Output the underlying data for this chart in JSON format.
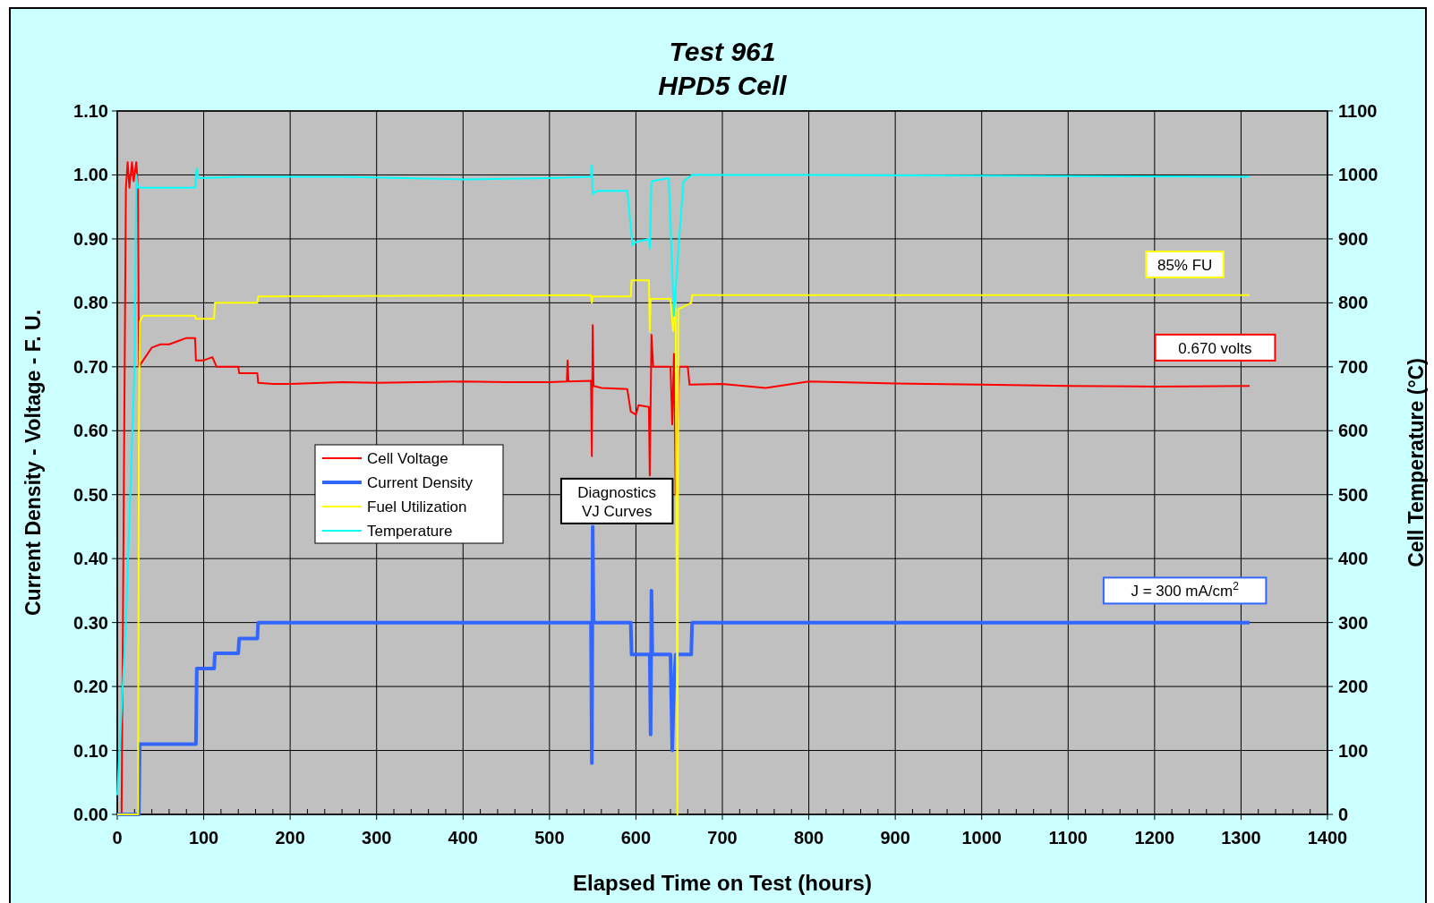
{
  "chart_data": {
    "type": "line",
    "title": "Test  961\nHPD5 Cell",
    "xlabel": "Elapsed  Time  on  Test  (hours)",
    "ylabel": "Current  Density  -  Voltage  -  F. U.",
    "y2label": "Cell  Temperature  (°C)",
    "xlim": [
      0,
      1400
    ],
    "xticks": [
      0,
      100,
      200,
      300,
      400,
      500,
      600,
      700,
      800,
      900,
      1000,
      1100,
      1200,
      1300,
      1400
    ],
    "ylim": [
      0,
      1.1
    ],
    "yticks": [
      {
        "value": 0,
        "label": "0.00"
      },
      {
        "value": 0.1,
        "label": "0.10"
      },
      {
        "value": 0.2,
        "label": "0.20"
      },
      {
        "value": 0.3,
        "label": "0.30"
      },
      {
        "value": 0.4,
        "label": "0.40"
      },
      {
        "value": 0.5,
        "label": "0.50"
      },
      {
        "value": 0.6,
        "label": "0.60"
      },
      {
        "value": 0.7,
        "label": "0.70"
      },
      {
        "value": 0.8,
        "label": "0.80"
      },
      {
        "value": 0.9,
        "label": "0.90"
      },
      {
        "value": 1,
        "label": "1.00"
      },
      {
        "value": 1.1,
        "label": "1.10"
      }
    ],
    "y2lim": [
      0,
      1100
    ],
    "y2ticks": [
      0,
      100,
      200,
      300,
      400,
      500,
      600,
      700,
      800,
      900,
      1000,
      1100
    ],
    "grid": true,
    "legend": "left",
    "line_style": "solid",
    "marker": "none",
    "series": [
      {
        "name": "Cell  Voltage",
        "color": "#ff0000",
        "x": [
          0,
          5,
          10,
          12,
          14,
          17,
          19,
          22,
          24,
          25,
          30,
          40,
          50,
          60,
          70,
          80,
          90,
          91,
          100,
          110,
          115,
          140,
          141,
          162,
          163,
          180,
          200,
          260,
          300,
          350,
          400,
          450,
          500,
          520,
          521,
          522,
          548,
          549,
          550,
          551,
          560,
          590,
          594,
          600,
          603,
          615,
          616,
          618,
          620,
          640,
          642,
          644,
          646,
          650,
          660,
          662,
          700,
          750,
          800,
          900,
          1000,
          1100,
          1200,
          1310
        ],
        "values": [
          0,
          0,
          0.98,
          1.02,
          0.98,
          1.02,
          0.99,
          1.02,
          0.98,
          0.7,
          0.71,
          0.73,
          0.735,
          0.735,
          0.74,
          0.745,
          0.745,
          0.71,
          0.71,
          0.715,
          0.7,
          0.7,
          0.69,
          0.69,
          0.675,
          0.673,
          0.673,
          0.676,
          0.675,
          0.676,
          0.677,
          0.676,
          0.676,
          0.677,
          0.71,
          0.677,
          0.678,
          0.56,
          0.765,
          0.67,
          0.667,
          0.665,
          0.63,
          0.625,
          0.64,
          0.637,
          0.53,
          0.75,
          0.7,
          0.7,
          0.61,
          0.72,
          0.5,
          0.7,
          0.7,
          0.672,
          0.673,
          0.667,
          0.677,
          0.674,
          0.672,
          0.67,
          0.669,
          0.67
        ]
      },
      {
        "name": "Current  Density",
        "color": "#3366ff",
        "x": [
          0,
          25,
          26,
          91,
          92,
          112,
          113,
          140,
          141,
          162,
          163,
          548,
          549,
          550,
          551,
          594,
          595,
          616,
          617,
          618,
          619,
          640,
          642,
          644,
          646,
          664,
          665,
          1310
        ],
        "values": [
          0,
          0,
          0.11,
          0.11,
          0.228,
          0.228,
          0.252,
          0.252,
          0.275,
          0.275,
          0.3,
          0.3,
          0.08,
          0.45,
          0.3,
          0.3,
          0.25,
          0.25,
          0.125,
          0.35,
          0.25,
          0.25,
          0.1,
          0.2,
          0.25,
          0.25,
          0.3,
          0.3
        ]
      },
      {
        "name": "Fuel  Utilization",
        "color": "#ffff00",
        "x": [
          0,
          24,
          25,
          26,
          30,
          90,
          91,
          112,
          113,
          162,
          163,
          548,
          549,
          550,
          594,
          595,
          615,
          616,
          617,
          640,
          643,
          646,
          648,
          649,
          664,
          665,
          1310
        ],
        "values": [
          0,
          0,
          0.6,
          0.77,
          0.78,
          0.78,
          0.775,
          0.775,
          0.8,
          0.8,
          0.81,
          0.812,
          0.8,
          0.81,
          0.81,
          0.835,
          0.835,
          0.755,
          0.806,
          0.806,
          0.756,
          0.8,
          0,
          0.79,
          0.8,
          0.812,
          0.812
        ]
      },
      {
        "name": "Temperature",
        "color": "#00ffff",
        "axis": "y2",
        "x": [
          0,
          10,
          20,
          22,
          24,
          90,
          92,
          94,
          140,
          260,
          400,
          500,
          548,
          549,
          550,
          555,
          590,
          596,
          600,
          615,
          616,
          618,
          638,
          644,
          650,
          655,
          665,
          800,
          1310
        ],
        "values": [
          30,
          300,
          700,
          1000,
          980,
          980,
          1010,
          995,
          997,
          997,
          993,
          995,
          997,
          1015,
          970,
          975,
          975,
          890,
          895,
          900,
          885,
          990,
          995,
          780,
          900,
          990,
          1000,
          1000,
          997
        ]
      }
    ],
    "annotations": [
      "Diagnostics\nVJ  Curves",
      "85%  FU",
      "0.670  volts",
      "J  =  300  mA/cm$^{2}$"
    ]
  }
}
